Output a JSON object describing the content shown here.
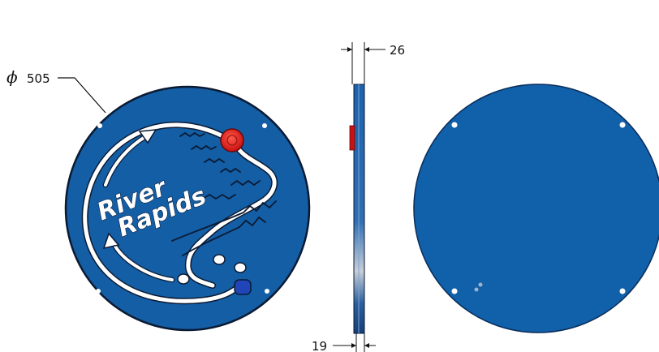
{
  "drawing": {
    "diameter_symbol": "ϕ",
    "diameter_value": "505",
    "thickness_top": "26",
    "thickness_bottom": "19",
    "title_line1": "River",
    "title_line2": "Rapids"
  },
  "colors": {
    "disc_blue": "#135ea5",
    "disc_edge": "#0b1a33",
    "back_blue": "#1060aa",
    "river_white": "#ffffff",
    "red_knob": "#dd1a1a",
    "blue_knob": "#1f45b8"
  }
}
